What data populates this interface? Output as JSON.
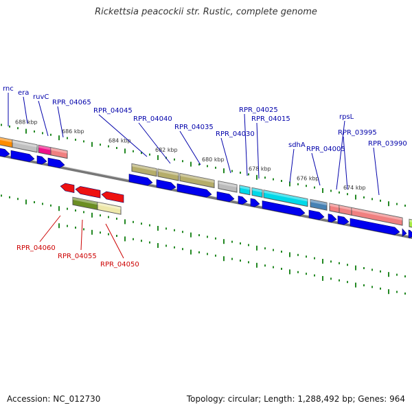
{
  "title": "Rickettsia peacockii str. Rustic, complete genome",
  "accession": "Accession: NC_012730",
  "summary": "Topology: circular; Length: 1,288,492 bp; Genes: 964",
  "colors": {
    "cds": "#0000ee",
    "reverse_label": "#cc0000",
    "forward_label": "#0000aa",
    "ticks": "#228822"
  },
  "kbp_labels": [
    "688 kbp",
    "686 kbp",
    "684 kbp",
    "682 kbp",
    "680 kbp",
    "678 kbp",
    "676 kbp",
    "674 kbp"
  ],
  "forward_genes": [
    {
      "label": "rnc"
    },
    {
      "label": "era"
    },
    {
      "label": "ruvC"
    },
    {
      "label": "RPR_04065"
    },
    {
      "label": "RPR_04045"
    },
    {
      "label": "RPR_04040"
    },
    {
      "label": "RPR_04035"
    },
    {
      "label": "RPR_04030"
    },
    {
      "label": "RPR_04025"
    },
    {
      "label": "RPR_04015"
    },
    {
      "label": "sdhA"
    },
    {
      "label": "RPR_04005"
    },
    {
      "label": "rpsL"
    },
    {
      "label": "RPR_03995"
    },
    {
      "label": "RPR_03990"
    }
  ],
  "reverse_genes": [
    {
      "label": "RPR_04060"
    },
    {
      "label": "RPR_04055"
    },
    {
      "label": "RPR_04050"
    }
  ]
}
